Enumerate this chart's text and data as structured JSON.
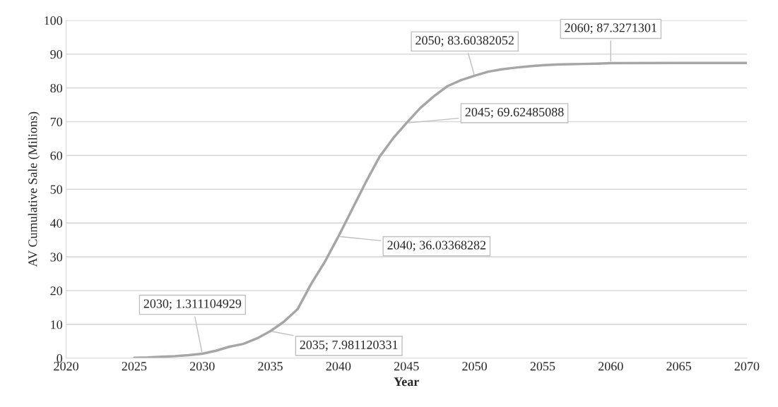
{
  "chart_data": {
    "type": "line",
    "xlabel": "Year",
    "ylabel": "AV Cumulative Sale (Milions)",
    "x": [
      2025,
      2026,
      2027,
      2028,
      2029,
      2030,
      2031,
      2032,
      2033,
      2034,
      2035,
      2036,
      2037,
      2038,
      2039,
      2040,
      2041,
      2042,
      2043,
      2044,
      2045,
      2046,
      2047,
      2048,
      2049,
      2050,
      2051,
      2052,
      2053,
      2054,
      2055,
      2056,
      2057,
      2058,
      2059,
      2060,
      2065,
      2070
    ],
    "series": [
      {
        "color": "#a6a6a6",
        "values": [
          0.1,
          0.2,
          0.4,
          0.6,
          0.9,
          1.311104929,
          2.2,
          3.4,
          4.2,
          5.8,
          7.981120331,
          10.8,
          14.5,
          22,
          28.5,
          36.03368282,
          44,
          52,
          59.5,
          65,
          69.62485088,
          74,
          77.5,
          80.5,
          82.3,
          83.60382052,
          84.8,
          85.5,
          86.0,
          86.4,
          86.7,
          86.9,
          87.0,
          87.1,
          87.2,
          87.3271301,
          87.4,
          87.4
        ]
      }
    ],
    "xlim": [
      2020,
      2070
    ],
    "xticks": [
      2020,
      2025,
      2030,
      2035,
      2040,
      2045,
      2050,
      2055,
      2060,
      2065,
      2070
    ],
    "ylim": [
      0,
      100
    ],
    "yticks": [
      0,
      10,
      20,
      30,
      40,
      50,
      60,
      70,
      80,
      90,
      100
    ],
    "grid": "y",
    "marker": "none",
    "line_style": "solid",
    "annotations": [
      {
        "text": "2030; 1.311104929",
        "x": 2030,
        "y": 1.311104929
      },
      {
        "text": "2035; 7.981120331",
        "x": 2035,
        "y": 7.981120331
      },
      {
        "text": "2040; 36.03368282",
        "x": 2040,
        "y": 36.03368282
      },
      {
        "text": "2045; 69.62485088",
        "x": 2045,
        "y": 69.62485088
      },
      {
        "text": "2050; 83.60382052",
        "x": 2050,
        "y": 83.60382052
      },
      {
        "text": "2060; 87.3271301",
        "x": 2060,
        "y": 87.3271301
      }
    ]
  }
}
